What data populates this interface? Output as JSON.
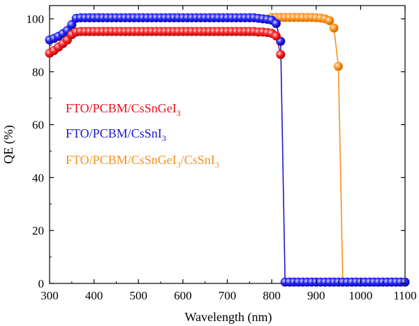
{
  "chart_data": {
    "type": "scatter",
    "xlabel": "Wavelength (nm)",
    "ylabel": "QE (%)",
    "xlim": [
      300,
      1100
    ],
    "ylim": [
      0,
      105
    ],
    "xticks": [
      300,
      400,
      500,
      600,
      700,
      800,
      900,
      1000,
      1100
    ],
    "yticks": [
      0,
      20,
      40,
      60,
      80,
      100
    ],
    "grid": false,
    "legend_position": "center-left",
    "series": [
      {
        "name": "FTO/PCBM/CsSnGeI3",
        "legend_main": "FTO/PCBM/CsSnGeI",
        "legend_sub": "3",
        "color": "#e8141c",
        "points": [
          [
            300,
            87.0
          ],
          [
            310,
            88.0
          ],
          [
            320,
            89.3
          ],
          [
            330,
            90.6
          ],
          [
            340,
            92.0
          ],
          [
            350,
            94.0
          ],
          [
            360,
            95.0
          ],
          [
            370,
            95.2
          ],
          [
            380,
            95.2
          ],
          [
            390,
            95.2
          ],
          [
            400,
            95.2
          ],
          [
            410,
            95.2
          ],
          [
            420,
            95.2
          ],
          [
            430,
            95.2
          ],
          [
            440,
            95.2
          ],
          [
            450,
            95.2
          ],
          [
            460,
            95.2
          ],
          [
            470,
            95.2
          ],
          [
            480,
            95.2
          ],
          [
            490,
            95.2
          ],
          [
            500,
            95.2
          ],
          [
            510,
            95.2
          ],
          [
            520,
            95.2
          ],
          [
            530,
            95.2
          ],
          [
            540,
            95.2
          ],
          [
            550,
            95.2
          ],
          [
            560,
            95.2
          ],
          [
            570,
            95.2
          ],
          [
            580,
            95.2
          ],
          [
            590,
            95.2
          ],
          [
            600,
            95.2
          ],
          [
            610,
            95.2
          ],
          [
            620,
            95.2
          ],
          [
            630,
            95.2
          ],
          [
            640,
            95.2
          ],
          [
            650,
            95.2
          ],
          [
            660,
            95.2
          ],
          [
            670,
            95.2
          ],
          [
            680,
            95.2
          ],
          [
            690,
            95.2
          ],
          [
            700,
            95.2
          ],
          [
            710,
            95.2
          ],
          [
            720,
            95.2
          ],
          [
            730,
            95.2
          ],
          [
            740,
            95.2
          ],
          [
            750,
            95.2
          ],
          [
            760,
            95.2
          ],
          [
            770,
            95.0
          ],
          [
            780,
            95.0
          ],
          [
            790,
            94.8
          ],
          [
            800,
            94.5
          ],
          [
            810,
            93.5
          ],
          [
            820,
            86.5
          ]
        ]
      },
      {
        "name": "FTO/PCBM/CsSnI3",
        "legend_main": "FTO/PCBM/CsSnI",
        "legend_sub": "3",
        "color": "#1a1acc",
        "points": [
          [
            300,
            92.0
          ],
          [
            310,
            92.6
          ],
          [
            320,
            93.4
          ],
          [
            330,
            94.4
          ],
          [
            340,
            95.6
          ],
          [
            350,
            97.8
          ],
          [
            360,
            100.2
          ],
          [
            370,
            100.4
          ],
          [
            380,
            100.4
          ],
          [
            390,
            100.4
          ],
          [
            400,
            100.4
          ],
          [
            410,
            100.4
          ],
          [
            420,
            100.4
          ],
          [
            430,
            100.4
          ],
          [
            440,
            100.4
          ],
          [
            450,
            100.4
          ],
          [
            460,
            100.4
          ],
          [
            470,
            100.4
          ],
          [
            480,
            100.4
          ],
          [
            490,
            100.4
          ],
          [
            500,
            100.4
          ],
          [
            510,
            100.4
          ],
          [
            520,
            100.4
          ],
          [
            530,
            100.4
          ],
          [
            540,
            100.4
          ],
          [
            550,
            100.4
          ],
          [
            560,
            100.4
          ],
          [
            570,
            100.4
          ],
          [
            580,
            100.4
          ],
          [
            590,
            100.4
          ],
          [
            600,
            100.4
          ],
          [
            610,
            100.4
          ],
          [
            620,
            100.4
          ],
          [
            630,
            100.4
          ],
          [
            640,
            100.4
          ],
          [
            650,
            100.4
          ],
          [
            660,
            100.4
          ],
          [
            670,
            100.4
          ],
          [
            680,
            100.4
          ],
          [
            690,
            100.4
          ],
          [
            700,
            100.4
          ],
          [
            710,
            100.4
          ],
          [
            720,
            100.4
          ],
          [
            730,
            100.4
          ],
          [
            740,
            100.4
          ],
          [
            750,
            100.4
          ],
          [
            760,
            100.4
          ],
          [
            770,
            100.2
          ],
          [
            780,
            100.0
          ],
          [
            790,
            99.8
          ],
          [
            800,
            99.5
          ],
          [
            810,
            98.2
          ],
          [
            820,
            91.5
          ],
          [
            830,
            0.5
          ],
          [
            840,
            0.5
          ],
          [
            850,
            0.5
          ],
          [
            860,
            0.5
          ],
          [
            870,
            0.5
          ],
          [
            880,
            0.5
          ],
          [
            890,
            0.5
          ],
          [
            900,
            0.5
          ],
          [
            910,
            0.5
          ],
          [
            920,
            0.5
          ],
          [
            930,
            0.5
          ],
          [
            940,
            0.5
          ],
          [
            950,
            0.5
          ],
          [
            960,
            0.5
          ],
          [
            970,
            0.5
          ],
          [
            980,
            0.5
          ],
          [
            990,
            0.5
          ],
          [
            1000,
            0.5
          ],
          [
            1010,
            0.5
          ],
          [
            1020,
            0.5
          ],
          [
            1030,
            0.5
          ],
          [
            1040,
            0.5
          ],
          [
            1050,
            0.5
          ],
          [
            1060,
            0.5
          ],
          [
            1070,
            0.5
          ],
          [
            1080,
            0.5
          ],
          [
            1090,
            0.5
          ],
          [
            1100,
            0.5
          ]
        ]
      },
      {
        "name": "FTO/PCBM/CsSnGeI3/CsSnI3",
        "legend_main": "FTO/PCBM/CsSnGeI",
        "legend_sub": "3",
        "legend_mid": "/CsSnI",
        "legend_sub2": "3",
        "color": "#f7901e",
        "points": [
          [
            800,
            100.5
          ],
          [
            810,
            100.5
          ],
          [
            820,
            100.5
          ],
          [
            830,
            100.5
          ],
          [
            840,
            100.5
          ],
          [
            850,
            100.5
          ],
          [
            860,
            100.5
          ],
          [
            870,
            100.5
          ],
          [
            880,
            100.5
          ],
          [
            890,
            100.5
          ],
          [
            900,
            100.4
          ],
          [
            910,
            100.3
          ],
          [
            920,
            100.0
          ],
          [
            930,
            99.3
          ],
          [
            940,
            96.5
          ],
          [
            950,
            82.0
          ],
          [
            960,
            0.5
          ],
          [
            970,
            0.5
          ],
          [
            980,
            0.5
          ],
          [
            990,
            0.5
          ],
          [
            1000,
            0.5
          ],
          [
            1010,
            0.5
          ],
          [
            1020,
            0.5
          ],
          [
            1030,
            0.5
          ],
          [
            1040,
            0.5
          ],
          [
            1050,
            0.5
          ],
          [
            1060,
            0.5
          ],
          [
            1070,
            0.5
          ],
          [
            1080,
            0.5
          ],
          [
            1090,
            0.5
          ],
          [
            1100,
            0.5
          ]
        ]
      }
    ]
  }
}
